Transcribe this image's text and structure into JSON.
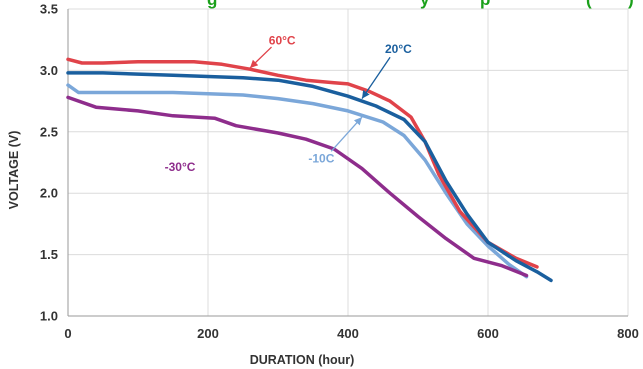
{
  "chart_data": {
    "type": "line",
    "title_fragment_left": "g",
    "title_fragment_middle": "y",
    "title_fragment_right": "p",
    "title_fragment_end": "(",
    "title_fragment_close": ")",
    "title_color": "#1aa01a",
    "xlabel": "DURATION (hour)",
    "ylabel": "VOLTAGE (V)",
    "xlim": [
      0,
      800
    ],
    "ylim": [
      1.0,
      3.5
    ],
    "x_ticks": [
      0,
      200,
      400,
      600,
      800
    ],
    "y_ticks": [
      1.0,
      1.5,
      2.0,
      2.5,
      3.0,
      3.5
    ],
    "y_tick_labels": [
      "1.0",
      "1.5",
      "2.0",
      "2.5",
      "3.0",
      "3.5"
    ],
    "grid": true,
    "series": [
      {
        "name": "60°C",
        "color": "#e0434a",
        "x": [
          0,
          20,
          50,
          100,
          150,
          180,
          220,
          260,
          300,
          340,
          380,
          400,
          430,
          460,
          490,
          510,
          530,
          560,
          600,
          640,
          670
        ],
        "y": [
          3.09,
          3.06,
          3.06,
          3.07,
          3.07,
          3.07,
          3.05,
          3.01,
          2.96,
          2.92,
          2.9,
          2.89,
          2.83,
          2.75,
          2.62,
          2.42,
          2.15,
          1.85,
          1.6,
          1.47,
          1.4
        ]
      },
      {
        "name": "20°C",
        "color": "#1a5f9e",
        "x": [
          0,
          50,
          100,
          150,
          200,
          250,
          300,
          350,
          400,
          440,
          480,
          510,
          540,
          570,
          600,
          640,
          670,
          690
        ],
        "y": [
          2.98,
          2.98,
          2.97,
          2.96,
          2.95,
          2.94,
          2.92,
          2.87,
          2.79,
          2.71,
          2.6,
          2.42,
          2.1,
          1.83,
          1.6,
          1.45,
          1.36,
          1.29
        ]
      },
      {
        "name": "-10C",
        "color": "#7ba7d9",
        "x": [
          0,
          15,
          40,
          100,
          150,
          200,
          250,
          300,
          350,
          400,
          450,
          480,
          510,
          540,
          570,
          600,
          630,
          655
        ],
        "y": [
          2.88,
          2.82,
          2.82,
          2.82,
          2.82,
          2.81,
          2.8,
          2.77,
          2.73,
          2.67,
          2.58,
          2.47,
          2.27,
          2.0,
          1.75,
          1.57,
          1.42,
          1.32
        ]
      },
      {
        "name": "-30°C",
        "color": "#8e2d8c",
        "x": [
          0,
          40,
          100,
          150,
          210,
          240,
          300,
          340,
          380,
          420,
          460,
          500,
          540,
          580,
          620,
          655
        ],
        "y": [
          2.78,
          2.7,
          2.67,
          2.63,
          2.61,
          2.55,
          2.49,
          2.44,
          2.36,
          2.2,
          2.0,
          1.81,
          1.63,
          1.47,
          1.41,
          1.33
        ]
      }
    ],
    "annotations": [
      {
        "text": "60°C",
        "series": 0,
        "color": "#e0434a",
        "label_x": 306,
        "label_y": 3.21,
        "arrow_to_x": 260,
        "arrow_to_y": 3.02
      },
      {
        "text": "20°C",
        "series": 1,
        "color": "#1a5f9e",
        "label_x": 472,
        "label_y": 3.14,
        "arrow_to_x": 420,
        "arrow_to_y": 2.77
      },
      {
        "text": "-10C",
        "series": 2,
        "color": "#7ba7d9",
        "label_x": 362,
        "label_y": 2.25,
        "arrow_to_x": 420,
        "arrow_to_y": 2.62
      },
      {
        "text": "-30°C",
        "series": 3,
        "color": "#8e2d8c",
        "label_x": 160,
        "label_y": 2.18,
        "arrow_to_x": null,
        "arrow_to_y": null
      }
    ]
  }
}
